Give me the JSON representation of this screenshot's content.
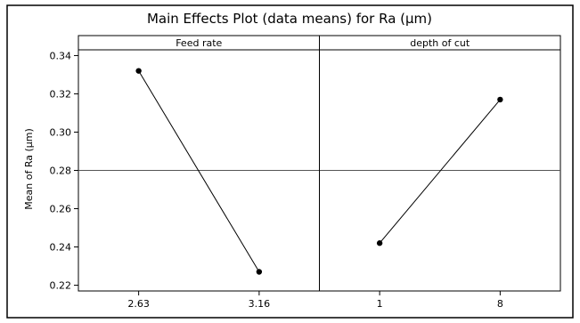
{
  "chart_data": {
    "type": "line",
    "title": "Main Effects Plot (data means) for Ra (μm)",
    "ylabel": "Mean of Ra (μm)",
    "ylim": [
      0.217,
      0.343
    ],
    "yticks": [
      "0.22",
      "0.24",
      "0.26",
      "0.28",
      "0.30",
      "0.32",
      "0.34"
    ],
    "reference_line": 0.28,
    "grid": false,
    "panels": [
      {
        "name": "Feed rate",
        "categories": [
          "2.63",
          "3.16"
        ],
        "values": [
          0.332,
          0.227
        ]
      },
      {
        "name": "depth of cut",
        "categories": [
          "1",
          "8"
        ],
        "values": [
          0.242,
          0.317
        ]
      }
    ]
  }
}
